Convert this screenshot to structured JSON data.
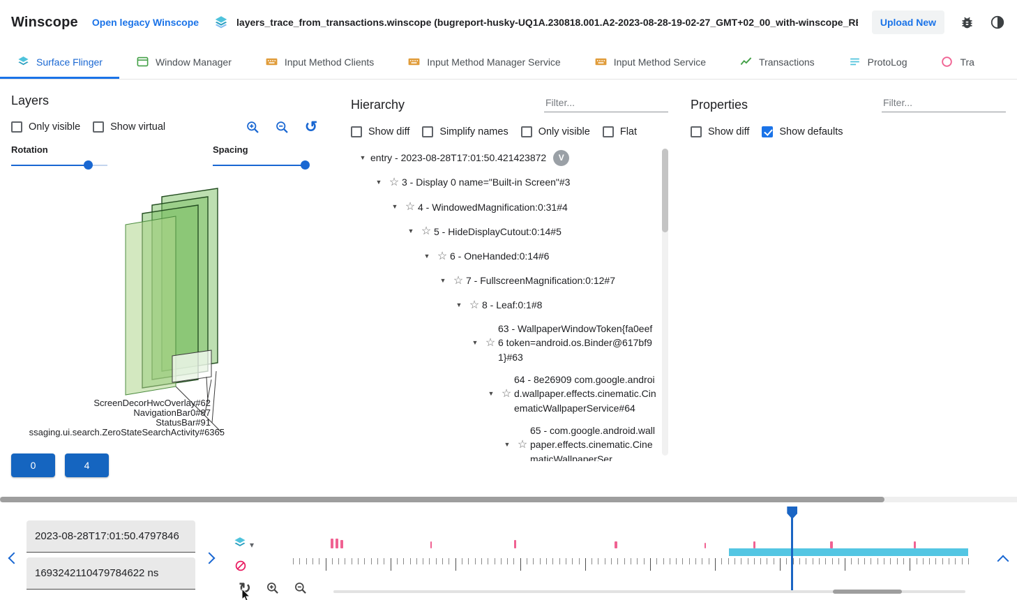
{
  "colors": {
    "accent_blue": "#1967d2",
    "link_blue": "#1a73e8",
    "button_blue": "#1565c0",
    "marker_pink": "#f06292",
    "range_cyan": "#54c6e3",
    "cursor_blue": "#1a65c4",
    "layer_green": "#7cbf63",
    "icon_teal": "#4fc3dc",
    "icon_orange": "#e09c3a",
    "icon_green": "#43a047"
  },
  "header": {
    "app_title": "Winscope",
    "legacy_link": "Open legacy Winscope",
    "trace_file": "layers_trace_from_transactions.winscope (bugreport-husky-UQ1A.230818.001.A2-2023-08-28-19-02-27_GMT+02_00_with-winscope_REDACTED.zip)",
    "upload_button": "Upload New"
  },
  "tabs": [
    {
      "label": "Surface Flinger",
      "active": true
    },
    {
      "label": "Window Manager",
      "active": false
    },
    {
      "label": "Input Method Clients",
      "active": false
    },
    {
      "label": "Input Method Manager Service",
      "active": false
    },
    {
      "label": "Input Method Service",
      "active": false
    },
    {
      "label": "Transactions",
      "active": false
    },
    {
      "label": "ProtoLog",
      "active": false
    },
    {
      "label": "Tra",
      "active": false
    }
  ],
  "layers_panel": {
    "title": "Layers",
    "only_visible_label": "Only visible",
    "show_virtual_label": "Show virtual",
    "rotation_label": "Rotation",
    "spacing_label": "Spacing",
    "rotation_percent": 80,
    "spacing_percent": 96,
    "layer_labels": [
      "ScreenDecorHwcOverlay#62",
      "NavigationBar0#87",
      "StatusBar#91",
      "ssaging.ui.search.ZeroStateSearchActivity#6365"
    ],
    "nav_buttons": [
      "0",
      "4"
    ]
  },
  "hierarchy_panel": {
    "title": "Hierarchy",
    "filter_placeholder": "Filter...",
    "checkboxes": [
      {
        "label": "Show diff",
        "checked": false
      },
      {
        "label": "Simplify names",
        "checked": false
      },
      {
        "label": "Only visible",
        "checked": false
      },
      {
        "label": "Flat",
        "checked": false
      }
    ],
    "tree": [
      {
        "label": "entry - 2023-08-28T17:01:50.421423872",
        "level": 0,
        "star": false,
        "badge": "V"
      },
      {
        "label": "3 - Display 0 name=\"Built-in Screen\"#3",
        "level": 1,
        "star": true
      },
      {
        "label": "4 - WindowedMagnification:0:31#4",
        "level": 2,
        "star": true
      },
      {
        "label": "5 - HideDisplayCutout:0:14#5",
        "level": 3,
        "star": true
      },
      {
        "label": "6 - OneHanded:0:14#6",
        "level": 4,
        "star": true
      },
      {
        "label": "7 - FullscreenMagnification:0:12#7",
        "level": 5,
        "star": true
      },
      {
        "label": "8 - Leaf:0:1#8",
        "level": 6,
        "star": true
      },
      {
        "label": "63 - WallpaperWindowToken{fa0eef6 token=android.os.Binder@617bf91}#63",
        "level": 7,
        "star": true
      },
      {
        "label": "64 - 8e26909 com.google.android.wallpaper.effects.cinematic.CinematicWallpaperService#64",
        "level": 8,
        "star": true
      },
      {
        "label": "65 - com.google.android.wallpaper.effects.cinematic.CinematicWallpaperSer",
        "level": 9,
        "star": true
      }
    ]
  },
  "properties_panel": {
    "title": "Properties",
    "filter_placeholder": "Filter...",
    "checkboxes": [
      {
        "label": "Show diff",
        "checked": false
      },
      {
        "label": "Show defaults",
        "checked": true
      }
    ]
  },
  "timeline": {
    "human_timestamp": "2023-08-28T17:01:50.4797846",
    "ns_timestamp": "1693242110479784622 ns",
    "markers": [
      {
        "pos": 5.6,
        "w": 4,
        "h": 14
      },
      {
        "pos": 6.3,
        "w": 4,
        "h": 14
      },
      {
        "pos": 7.0,
        "w": 4,
        "h": 12
      },
      {
        "pos": 20.4,
        "w": 2,
        "h": 10
      },
      {
        "pos": 32.7,
        "w": 3,
        "h": 12
      },
      {
        "pos": 47.6,
        "w": 4,
        "h": 10
      },
      {
        "pos": 61.0,
        "w": 2,
        "h": 8
      },
      {
        "pos": 68.2,
        "w": 3,
        "h": 10
      },
      {
        "pos": 79.5,
        "w": 4,
        "h": 10
      },
      {
        "pos": 91.9,
        "w": 3,
        "h": 10
      }
    ],
    "active_range": {
      "start": 64.6,
      "end": 100
    },
    "cursor_pos": 73.9
  }
}
